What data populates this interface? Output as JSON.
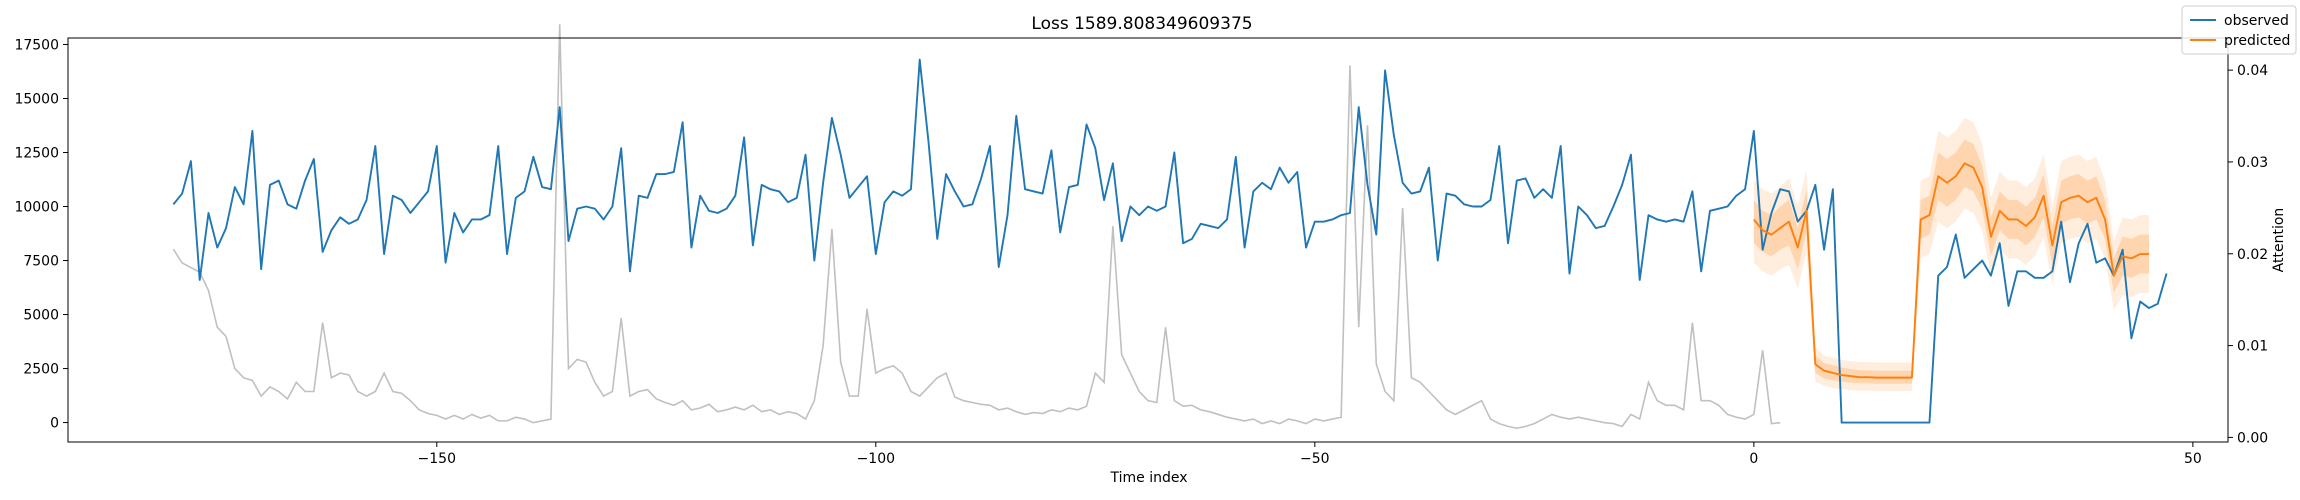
{
  "chart_data": {
    "type": "line",
    "title": "Loss 1589.808349609375",
    "xlabel": "Time index",
    "ylabel_right": "Attention",
    "xlim": [
      -192,
      54
    ],
    "ylim_left": [
      -900,
      17800
    ],
    "ylim_right": [
      -0.0005,
      0.0435
    ],
    "x_ticks": [
      -150,
      -100,
      -50,
      0,
      50
    ],
    "x_tick_labels": [
      "−150",
      "−100",
      "−50",
      "0",
      "50"
    ],
    "y_left_ticks": [
      0,
      2500,
      5000,
      7500,
      10000,
      12500,
      15000,
      17500
    ],
    "y_left_tick_labels": [
      "0",
      "2500",
      "5000",
      "7500",
      "10000",
      "12500",
      "15000",
      "17500"
    ],
    "y_right_ticks": [
      0.0,
      0.01,
      0.02,
      0.03,
      0.04
    ],
    "y_right_tick_labels": [
      "0.00",
      "0.01",
      "0.02",
      "0.03",
      "0.04"
    ],
    "grid": false,
    "legend_position": "top-right",
    "colors": {
      "observed": "#1f77b4",
      "predicted": "#ff7f0e",
      "attention": "#c0c0c0",
      "band": "#ff7f0e"
    },
    "series": [
      {
        "name": "observed",
        "axis": "left",
        "x_start": -180,
        "values": [
          10100,
          10600,
          12100,
          6600,
          9700,
          8100,
          9000,
          10900,
          10100,
          13500,
          7100,
          11000,
          11200,
          10100,
          9900,
          11200,
          12200,
          7900,
          8900,
          9500,
          9200,
          9400,
          10300,
          12800,
          7800,
          10500,
          10300,
          9700,
          10200,
          10700,
          12800,
          7400,
          9700,
          8800,
          9400,
          9400,
          9600,
          12800,
          7800,
          10400,
          10700,
          12300,
          10900,
          10800,
          14600,
          8400,
          9900,
          10000,
          9900,
          9400,
          10000,
          12700,
          7000,
          10500,
          10400,
          11500,
          11500,
          11600,
          13900,
          8100,
          10500,
          9800,
          9700,
          9900,
          10500,
          13200,
          8200,
          11000,
          10800,
          10700,
          10200,
          10400,
          12400,
          7500,
          11100,
          14100,
          12400,
          10400,
          10900,
          11400,
          7800,
          10200,
          10700,
          10500,
          10800,
          16800,
          13000,
          8500,
          11500,
          10700,
          10000,
          10100,
          11300,
          12800,
          7200,
          9600,
          14200,
          10800,
          10700,
          10600,
          12600,
          8800,
          10900,
          11000,
          13800,
          12700,
          10300,
          12000,
          8400,
          10000,
          9600,
          10000,
          9800,
          10000,
          12500,
          8300,
          8500,
          9200,
          9100,
          9000,
          9400,
          12300,
          8100,
          10700,
          11100,
          10800,
          11800,
          11100,
          11600,
          8100,
          9300,
          9300,
          9400,
          9600,
          9700,
          14600,
          11000,
          8700,
          16300,
          13300,
          11100,
          10600,
          10700,
          11800,
          7500,
          10600,
          10500,
          10100,
          10000,
          10000,
          10300,
          12800,
          8300,
          11200,
          11300,
          10400,
          10800,
          10400,
          12800,
          6900,
          10000,
          9600,
          9000,
          9100,
          10000,
          11000,
          12400,
          6600,
          9600,
          9400,
          9300,
          9400,
          9300,
          10700,
          7000,
          9800,
          9900,
          10000,
          10500,
          10800,
          13500,
          8000,
          9700,
          10800,
          10700,
          9300,
          9800,
          11000,
          8000,
          10800,
          0,
          0,
          0,
          0,
          0,
          0,
          0,
          0,
          0,
          0,
          0,
          6800,
          7200,
          8700,
          6700,
          7100,
          7500,
          6800,
          8300,
          5400,
          7000,
          7000,
          6700,
          6700,
          7000,
          9300,
          6500,
          8300,
          9200,
          7400,
          7600,
          6800,
          8000,
          3900,
          5600,
          5300,
          5500,
          6900
        ]
      },
      {
        "name": "predicted",
        "axis": "left",
        "x_start": 0,
        "values": [
          9400,
          8900,
          8700,
          9000,
          9300,
          8100,
          9800,
          2700,
          2400,
          2300,
          2200,
          2150,
          2100,
          2100,
          2080,
          2080,
          2080,
          2080,
          2080,
          9400,
          9600,
          11400,
          11100,
          11400,
          12000,
          11800,
          10900,
          8600,
          9800,
          9400,
          9400,
          9100,
          9500,
          10500,
          8200,
          10200,
          10400,
          10500,
          10200,
          10400,
          9400,
          6800,
          7700,
          7600,
          7800,
          7800
        ],
        "band_inner": [
          [
            8300,
            10300
          ],
          [
            7900,
            9800
          ],
          [
            7700,
            9600
          ],
          [
            8000,
            10000
          ],
          [
            8200,
            10300
          ],
          [
            7100,
            9000
          ],
          [
            8800,
            10800
          ],
          [
            2300,
            3100
          ],
          [
            2050,
            2750
          ],
          [
            1950,
            2650
          ],
          [
            1900,
            2550
          ],
          [
            1850,
            2480
          ],
          [
            1820,
            2420
          ],
          [
            1820,
            2420
          ],
          [
            1800,
            2400
          ],
          [
            1800,
            2400
          ],
          [
            1800,
            2400
          ],
          [
            1800,
            2400
          ],
          [
            1800,
            2400
          ],
          [
            8500,
            10300
          ],
          [
            8700,
            10500
          ],
          [
            10300,
            12500
          ],
          [
            10000,
            12200
          ],
          [
            10300,
            12500
          ],
          [
            10900,
            13100
          ],
          [
            10700,
            12900
          ],
          [
            9900,
            11900
          ],
          [
            7700,
            9500
          ],
          [
            8900,
            10700
          ],
          [
            8500,
            10300
          ],
          [
            8500,
            10300
          ],
          [
            8200,
            10000
          ],
          [
            8600,
            10400
          ],
          [
            9500,
            11500
          ],
          [
            7300,
            9100
          ],
          [
            9200,
            11200
          ],
          [
            9400,
            11400
          ],
          [
            9500,
            11500
          ],
          [
            9200,
            11200
          ],
          [
            9400,
            11400
          ],
          [
            8500,
            10300
          ],
          [
            6000,
            7600
          ],
          [
            6800,
            8600
          ],
          [
            6700,
            8500
          ],
          [
            6900,
            8700
          ],
          [
            6900,
            8700
          ]
        ],
        "band_outer": [
          [
            7400,
            11200
          ],
          [
            7000,
            10800
          ],
          [
            6800,
            10600
          ],
          [
            7100,
            10900
          ],
          [
            7300,
            11300
          ],
          [
            6200,
            10000
          ],
          [
            7900,
            11700
          ],
          [
            1900,
            3500
          ],
          [
            1700,
            3100
          ],
          [
            1600,
            3000
          ],
          [
            1550,
            2900
          ],
          [
            1500,
            2850
          ],
          [
            1480,
            2800
          ],
          [
            1480,
            2800
          ],
          [
            1460,
            2780
          ],
          [
            1460,
            2780
          ],
          [
            1460,
            2780
          ],
          [
            1460,
            2780
          ],
          [
            1460,
            2780
          ],
          [
            7600,
            11200
          ],
          [
            7800,
            11400
          ],
          [
            9300,
            13500
          ],
          [
            9000,
            13200
          ],
          [
            9300,
            13500
          ],
          [
            9900,
            14100
          ],
          [
            9700,
            13900
          ],
          [
            8900,
            12900
          ],
          [
            6800,
            10400
          ],
          [
            8000,
            11600
          ],
          [
            7600,
            11200
          ],
          [
            7600,
            11200
          ],
          [
            7300,
            10900
          ],
          [
            7700,
            11300
          ],
          [
            8600,
            12400
          ],
          [
            6400,
            10000
          ],
          [
            8300,
            12100
          ],
          [
            8500,
            12300
          ],
          [
            8600,
            12400
          ],
          [
            8300,
            12100
          ],
          [
            8500,
            12300
          ],
          [
            7600,
            11200
          ],
          [
            5200,
            8400
          ],
          [
            5900,
            9500
          ],
          [
            5800,
            9400
          ],
          [
            6000,
            9600
          ],
          [
            6000,
            9600
          ]
        ]
      },
      {
        "name": "attention",
        "axis": "right",
        "x_start": -180,
        "values": [
          0.0205,
          0.019,
          0.0185,
          0.018,
          0.016,
          0.012,
          0.011,
          0.0075,
          0.0065,
          0.0062,
          0.0045,
          0.0055,
          0.005,
          0.0042,
          0.006,
          0.005,
          0.005,
          0.0125,
          0.0065,
          0.007,
          0.0068,
          0.005,
          0.0045,
          0.005,
          0.007,
          0.005,
          0.0048,
          0.004,
          0.003,
          0.0026,
          0.0024,
          0.002,
          0.0024,
          0.002,
          0.0025,
          0.0021,
          0.0024,
          0.0018,
          0.0018,
          0.0022,
          0.002,
          0.0016,
          0.0018,
          0.002,
          0.045,
          0.0075,
          0.0085,
          0.0082,
          0.006,
          0.0045,
          0.005,
          0.013,
          0.0045,
          0.005,
          0.0052,
          0.0042,
          0.0038,
          0.0035,
          0.004,
          0.003,
          0.0032,
          0.0036,
          0.0028,
          0.003,
          0.0033,
          0.003,
          0.0035,
          0.0028,
          0.003,
          0.0025,
          0.0028,
          0.0026,
          0.002,
          0.004,
          0.01,
          0.0227,
          0.0082,
          0.0045,
          0.0045,
          0.014,
          0.007,
          0.0075,
          0.0078,
          0.007,
          0.005,
          0.0045,
          0.0055,
          0.0065,
          0.007,
          0.0044,
          0.004,
          0.0038,
          0.0036,
          0.0035,
          0.003,
          0.0032,
          0.0028,
          0.0025,
          0.0027,
          0.0026,
          0.003,
          0.0028,
          0.0032,
          0.003,
          0.0034,
          0.007,
          0.006,
          0.023,
          0.009,
          0.007,
          0.005,
          0.004,
          0.0038,
          0.012,
          0.004,
          0.0034,
          0.0035,
          0.003,
          0.0028,
          0.0025,
          0.0022,
          0.002,
          0.0018,
          0.002,
          0.0015,
          0.0018,
          0.0015,
          0.002,
          0.0018,
          0.0015,
          0.002,
          0.0018,
          0.002,
          0.0022,
          0.0405,
          0.012,
          0.034,
          0.008,
          0.005,
          0.004,
          0.025,
          0.0065,
          0.006,
          0.005,
          0.004,
          0.003,
          0.0025,
          0.003,
          0.0035,
          0.004,
          0.002,
          0.0015,
          0.0012,
          0.001,
          0.0012,
          0.0015,
          0.002,
          0.0025,
          0.0022,
          0.002,
          0.0022,
          0.002,
          0.0018,
          0.0016,
          0.0015,
          0.0012,
          0.0025,
          0.002,
          0.006,
          0.004,
          0.0035,
          0.0035,
          0.003,
          0.0125,
          0.004,
          0.004,
          0.0035,
          0.0025,
          0.0022,
          0.002,
          0.0025,
          0.0095,
          0.0015,
          0.0016
        ]
      }
    ],
    "legend": [
      {
        "label": "observed",
        "color": "#1f77b4"
      },
      {
        "label": "predicted",
        "color": "#ff7f0e"
      }
    ]
  }
}
